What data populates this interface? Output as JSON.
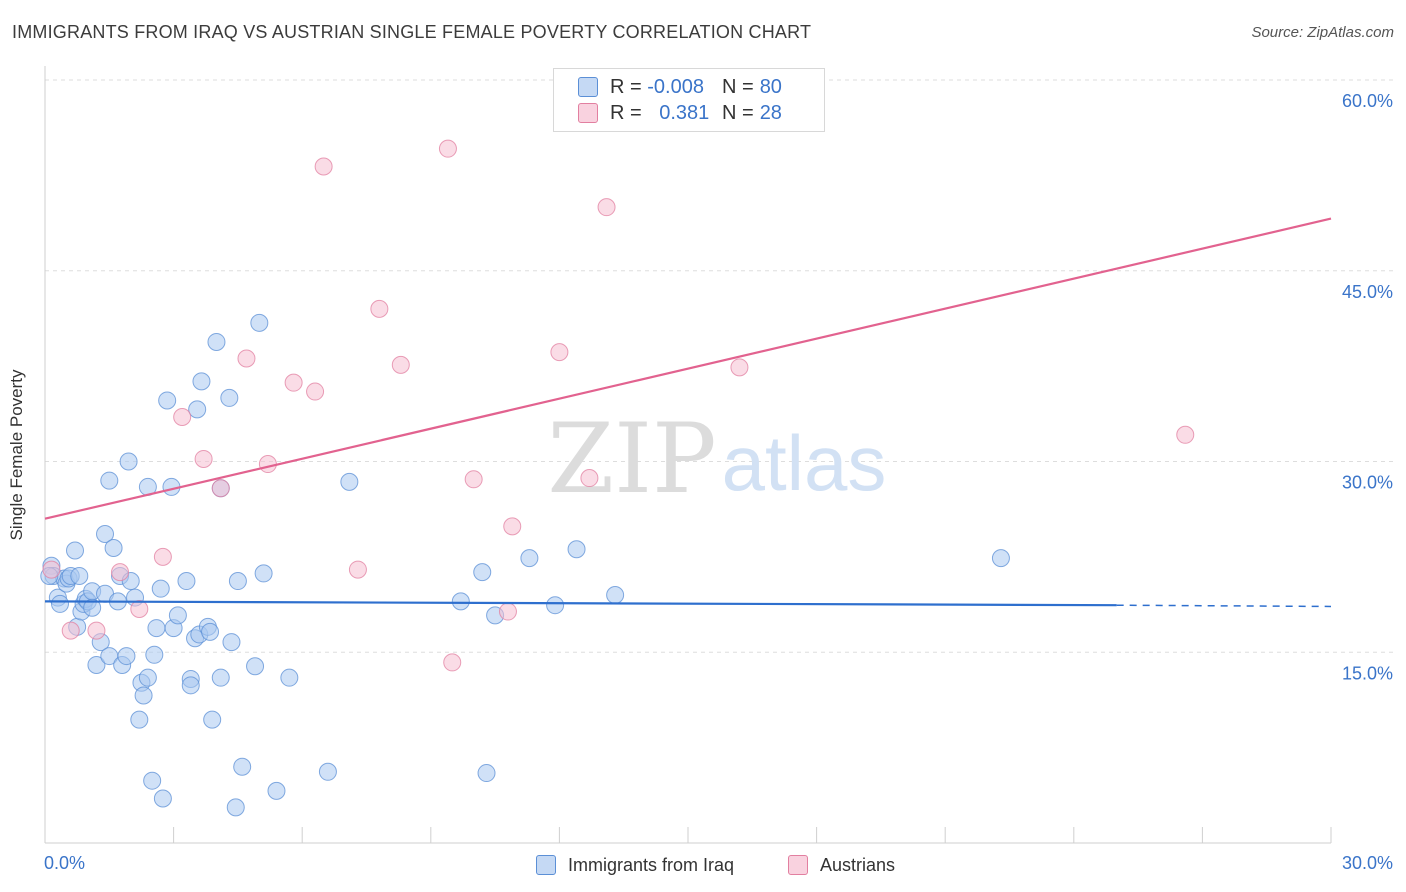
{
  "header": {
    "title": "IMMIGRANTS FROM IRAQ VS AUSTRIAN SINGLE FEMALE POVERTY CORRELATION CHART",
    "source": "Source: ZipAtlas.com"
  },
  "watermark": {
    "zip": "ZIP",
    "atlas": "atlas"
  },
  "colors": {
    "iraq_fill": "#a9c8f0",
    "iraq_stroke": "#5b8fd6",
    "iraq_line": "#2e6fce",
    "austrian_fill": "#f6bfd1",
    "austrian_stroke": "#e27fa0",
    "austrian_line": "#e2628f",
    "value_text": "#3a74c9",
    "grid": "#dddddd"
  },
  "legend_top": [
    {
      "series": "iraq",
      "r_label": "R =",
      "r_value": "-0.008",
      "n_label": "N =",
      "n_value": "80"
    },
    {
      "series": "austrian",
      "r_label": "R =",
      "r_value": "0.381",
      "n_label": "N =",
      "n_value": "28"
    }
  ],
  "chart_data": {
    "type": "scatter",
    "title": "IMMIGRANTS FROM IRAQ VS AUSTRIAN SINGLE FEMALE POVERTY CORRELATION CHART",
    "xlabel": "",
    "ylabel": "Single Female Poverty",
    "xlim": [
      0,
      30
    ],
    "ylim": [
      0,
      60
    ],
    "x_tick_labels": [
      {
        "value": 0,
        "label": "0.0%"
      },
      {
        "value": 30,
        "label": "30.0%"
      }
    ],
    "x_minor_ticks": [
      3,
      6,
      9,
      12,
      15,
      18,
      21,
      24,
      27,
      30
    ],
    "y_ticks": [
      {
        "value": 15,
        "label": "15.0%"
      },
      {
        "value": 30,
        "label": "30.0%"
      },
      {
        "value": 45,
        "label": "45.0%"
      },
      {
        "value": 60,
        "label": "60.0%"
      }
    ],
    "grid": true,
    "legend_position": "bottom",
    "series": [
      {
        "name": "Immigrants from Iraq",
        "key": "iraq",
        "points": [
          [
            0.15,
            21.8
          ],
          [
            0.2,
            21.0
          ],
          [
            0.3,
            19.3
          ],
          [
            0.35,
            18.8
          ],
          [
            0.45,
            20.8
          ],
          [
            0.5,
            20.4
          ],
          [
            0.55,
            20.8
          ],
          [
            0.6,
            21.0
          ],
          [
            0.7,
            23.0
          ],
          [
            0.75,
            17.0
          ],
          [
            0.8,
            21.0
          ],
          [
            0.85,
            18.2
          ],
          [
            0.9,
            18.8
          ],
          [
            0.95,
            19.2
          ],
          [
            1.0,
            19.0
          ],
          [
            1.1,
            19.8
          ],
          [
            1.1,
            18.5
          ],
          [
            1.2,
            14.0
          ],
          [
            1.3,
            15.8
          ],
          [
            1.4,
            19.6
          ],
          [
            1.4,
            24.3
          ],
          [
            1.5,
            28.5
          ],
          [
            1.5,
            14.7
          ],
          [
            1.6,
            23.2
          ],
          [
            1.7,
            19.0
          ],
          [
            1.75,
            21.0
          ],
          [
            1.8,
            14.0
          ],
          [
            1.9,
            14.7
          ],
          [
            1.95,
            30.0
          ],
          [
            2.0,
            20.6
          ],
          [
            2.1,
            19.3
          ],
          [
            2.2,
            9.7
          ],
          [
            2.25,
            12.6
          ],
          [
            2.3,
            11.6
          ],
          [
            2.4,
            13.0
          ],
          [
            2.4,
            28.0
          ],
          [
            2.5,
            4.9
          ],
          [
            2.55,
            14.8
          ],
          [
            2.6,
            16.9
          ],
          [
            2.7,
            20.0
          ],
          [
            2.75,
            3.5
          ],
          [
            2.85,
            34.8
          ],
          [
            2.95,
            28.0
          ],
          [
            3.0,
            16.9
          ],
          [
            3.1,
            17.9
          ],
          [
            3.3,
            20.6
          ],
          [
            3.4,
            12.9
          ],
          [
            3.4,
            12.4
          ],
          [
            3.5,
            16.1
          ],
          [
            3.55,
            34.1
          ],
          [
            3.6,
            16.4
          ],
          [
            3.65,
            36.3
          ],
          [
            3.8,
            17.0
          ],
          [
            3.85,
            16.6
          ],
          [
            3.9,
            9.7
          ],
          [
            4.0,
            39.4
          ],
          [
            4.1,
            27.9
          ],
          [
            4.1,
            13.0
          ],
          [
            4.3,
            35.0
          ],
          [
            4.35,
            15.8
          ],
          [
            4.45,
            2.8
          ],
          [
            4.5,
            20.6
          ],
          [
            4.6,
            6.0
          ],
          [
            4.9,
            13.9
          ],
          [
            5.0,
            40.9
          ],
          [
            5.1,
            21.2
          ],
          [
            5.4,
            4.1
          ],
          [
            5.7,
            13.0
          ],
          [
            6.6,
            5.6
          ],
          [
            7.1,
            28.4
          ],
          [
            9.7,
            19.0
          ],
          [
            10.2,
            21.3
          ],
          [
            10.3,
            5.5
          ],
          [
            10.5,
            17.9
          ],
          [
            11.3,
            22.4
          ],
          [
            11.9,
            18.7
          ],
          [
            12.4,
            23.1
          ],
          [
            13.3,
            19.5
          ],
          [
            22.3,
            22.4
          ],
          [
            0.1,
            21.0
          ]
        ]
      },
      {
        "name": "Austrians",
        "key": "austrian",
        "points": [
          [
            0.15,
            21.5
          ],
          [
            0.6,
            16.7
          ],
          [
            1.2,
            16.7
          ],
          [
            1.75,
            21.3
          ],
          [
            2.2,
            18.4
          ],
          [
            2.75,
            22.5
          ],
          [
            3.2,
            33.5
          ],
          [
            3.7,
            30.2
          ],
          [
            4.1,
            27.9
          ],
          [
            4.7,
            38.1
          ],
          [
            5.2,
            29.8
          ],
          [
            5.8,
            36.2
          ],
          [
            6.3,
            35.5
          ],
          [
            6.5,
            53.2
          ],
          [
            7.3,
            21.5
          ],
          [
            7.8,
            42.0
          ],
          [
            8.3,
            37.6
          ],
          [
            9.4,
            54.6
          ],
          [
            9.5,
            14.2
          ],
          [
            10.0,
            28.6
          ],
          [
            10.8,
            18.2
          ],
          [
            10.9,
            24.9
          ],
          [
            12.0,
            38.6
          ],
          [
            12.7,
            28.7
          ],
          [
            13.1,
            50.0
          ],
          [
            14.9,
            56.8
          ],
          [
            16.2,
            37.4
          ],
          [
            26.6,
            32.1
          ]
        ]
      }
    ],
    "trend_lines": [
      {
        "series": "iraq",
        "x_start": 0,
        "y_start": 19.0,
        "x_end": 25.0,
        "y_end": 18.7,
        "dashed_x_end": 30,
        "dashed_y_end": 18.6
      },
      {
        "series": "austrian",
        "x_start": 0,
        "y_start": 25.5,
        "x_end": 30,
        "y_end": 49.1
      }
    ]
  },
  "legend_bottom": [
    {
      "series": "iraq",
      "label": "Immigrants from Iraq"
    },
    {
      "series": "austrian",
      "label": "Austrians"
    }
  ]
}
